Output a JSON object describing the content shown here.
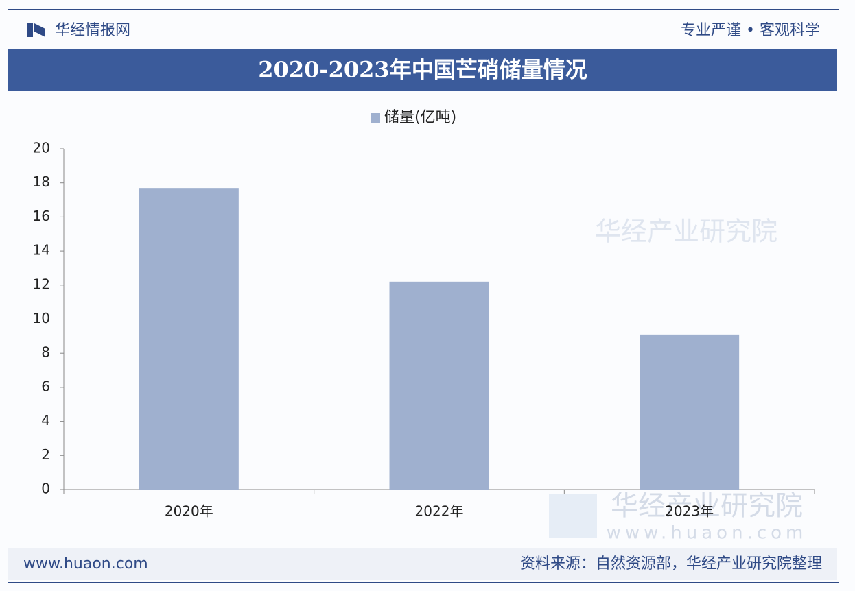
{
  "header": {
    "brand": "华经情报网",
    "slogan": "专业严谨 • 客观科学"
  },
  "chart_data": {
    "type": "bar",
    "title": "2020-2023年中国芒硝储量情况",
    "categories": [
      "2020年",
      "2022年",
      "2023年"
    ],
    "series": [
      {
        "name": "储量(亿吨)",
        "color": "#9fb0cf",
        "values": [
          17.7,
          12.2,
          9.1
        ]
      }
    ],
    "ylim": [
      0,
      20
    ],
    "yticks": [
      0,
      2,
      4,
      6,
      8,
      10,
      12,
      14,
      16,
      18,
      20
    ],
    "grid": false,
    "legend": "top"
  },
  "watermark": {
    "text": "华经产业研究院",
    "url": "www.huaon.com"
  },
  "footer": {
    "url": "www.huaon.com",
    "source": "资料来源：自然资源部，华经产业研究院整理"
  }
}
